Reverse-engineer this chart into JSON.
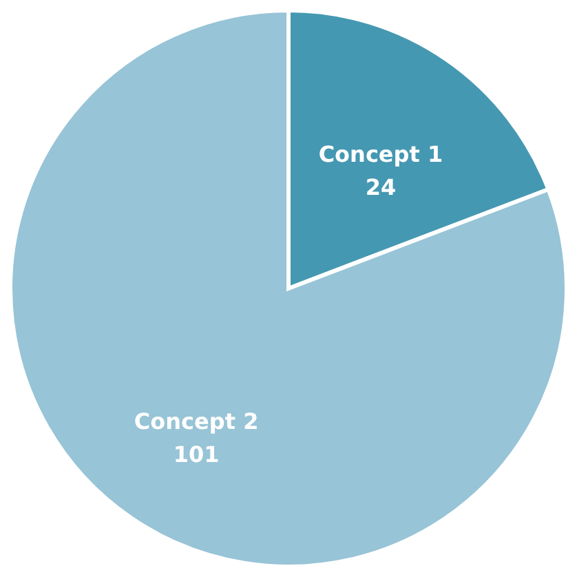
{
  "chart_data": {
    "type": "pie",
    "categories": [
      "Concept 1",
      "Concept 2"
    ],
    "values": [
      24,
      101
    ],
    "colors": [
      "#4598b1",
      "#97c4d6"
    ],
    "data_labels": true,
    "legend": false
  }
}
